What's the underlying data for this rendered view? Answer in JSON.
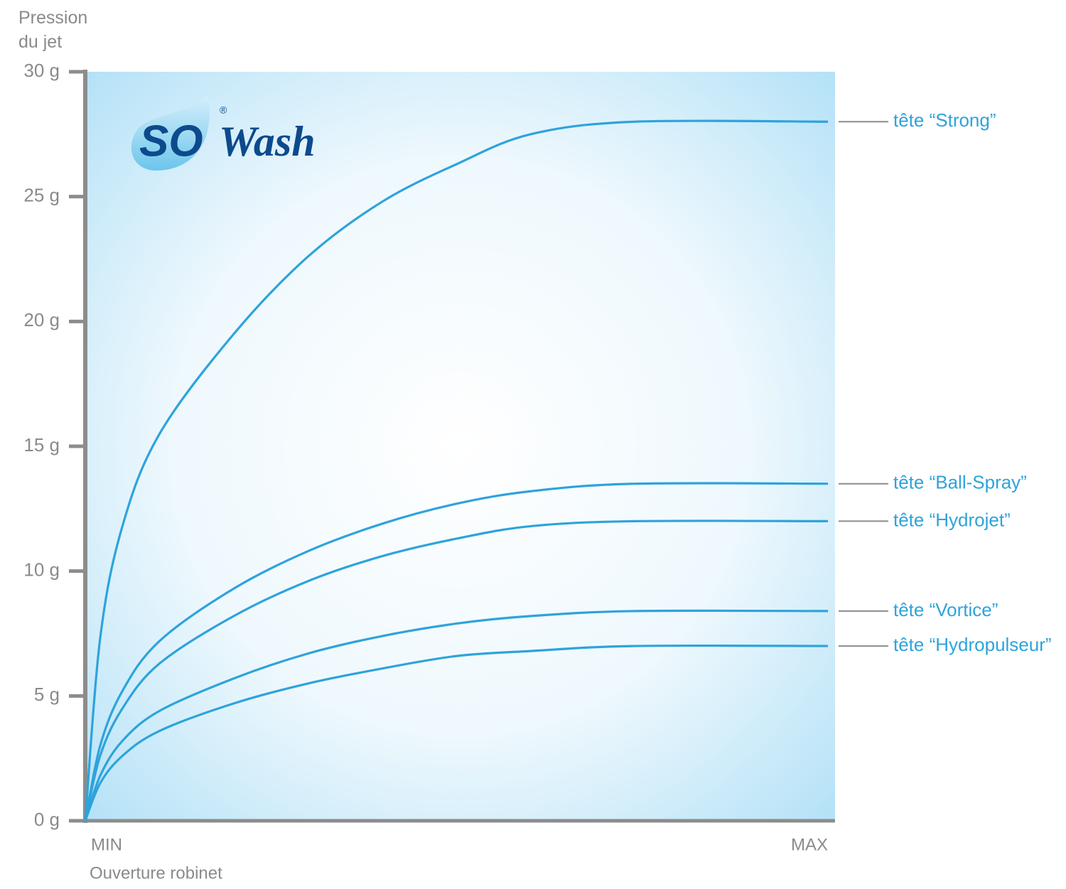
{
  "chart_data": {
    "type": "line",
    "ylabel": "Pression du jet",
    "xlabel": "Ouverture robinet",
    "logo": {
      "part1": "SO",
      "part2": "Wash",
      "mark": "®"
    },
    "x": [
      0,
      2,
      5,
      10,
      20,
      30,
      40,
      50,
      60,
      74,
      100
    ],
    "xlim": [
      0,
      100
    ],
    "xticks": [
      {
        "value": 0,
        "label": "MIN"
      },
      {
        "value": 100,
        "label": "MAX"
      }
    ],
    "ylim": [
      0,
      30
    ],
    "yticks": [
      {
        "value": 0,
        "label": "0 g"
      },
      {
        "value": 5,
        "label": "5 g"
      },
      {
        "value": 10,
        "label": "10 g"
      },
      {
        "value": 15,
        "label": "15 g"
      },
      {
        "value": 20,
        "label": "20 g"
      },
      {
        "value": 25,
        "label": "25 g"
      },
      {
        "value": 30,
        "label": "30 g"
      }
    ],
    "series": [
      {
        "name": "tête “Strong”",
        "color": "#2ea3db",
        "values": [
          0,
          7.3,
          11.8,
          15.5,
          19.5,
          22.6,
          24.8,
          26.3,
          27.5,
          28,
          28
        ]
      },
      {
        "name": "tête “Ball-Spray”",
        "color": "#2ea3db",
        "values": [
          0,
          3.0,
          5.2,
          7.2,
          9.3,
          10.8,
          11.9,
          12.7,
          13.2,
          13.5,
          13.5
        ]
      },
      {
        "name": "tête “Hydrojet”",
        "color": "#2ea3db",
        "values": [
          0,
          2.6,
          4.5,
          6.3,
          8.2,
          9.6,
          10.6,
          11.3,
          11.8,
          12,
          12
        ]
      },
      {
        "name": "tête “Vortice”",
        "color": "#2ea3db",
        "values": [
          0,
          1.8,
          3.2,
          4.4,
          5.7,
          6.7,
          7.4,
          7.9,
          8.2,
          8.4,
          8.4
        ]
      },
      {
        "name": "tête “Hydropulseur”",
        "color": "#2ea3db",
        "values": [
          0,
          1.5,
          2.6,
          3.6,
          4.7,
          5.5,
          6.1,
          6.6,
          6.8,
          7,
          7
        ]
      }
    ]
  }
}
